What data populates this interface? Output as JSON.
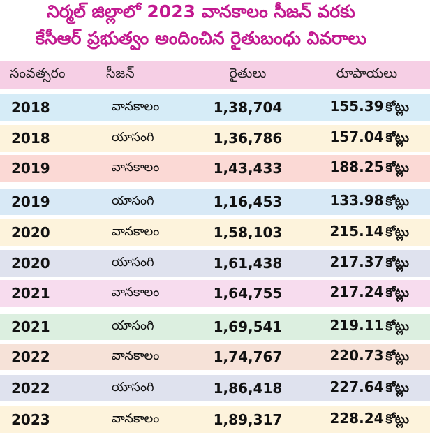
{
  "title": {
    "line1": "నిర్మల్ జిల్లాలో 2023 వానకాలం సీజన్ వరకు",
    "line2": "కేసీఆర్ ప్రభుత్వం అందించిన రైతుబంధు వివరాలు"
  },
  "table": {
    "headers": [
      "సంవత్సరం",
      "సీజన్",
      "రైతులు",
      "రూపాయలు"
    ],
    "unit": "కోట్లు",
    "rows": [
      {
        "year": "2018",
        "season": "వానకాలం",
        "farmers": "1,38,704",
        "amount": "155.39"
      },
      {
        "year": "2018",
        "season": "యాసంగి",
        "farmers": "1,36,786",
        "amount": "157.04"
      },
      {
        "year": "2019",
        "season": "వానకాలం",
        "farmers": "1,43,433",
        "amount": "188.25"
      },
      {
        "year": "2019",
        "season": "యాసంగి",
        "farmers": "1,16,453",
        "amount": "133.98"
      },
      {
        "year": "2020",
        "season": "వానకాలం",
        "farmers": "1,58,103",
        "amount": "215.14"
      },
      {
        "year": "2020",
        "season": "యాసంగి",
        "farmers": "1,61,438",
        "amount": "217.37"
      },
      {
        "year": "2021",
        "season": "వానకాలం",
        "farmers": "1,64,755",
        "amount": "217.24"
      },
      {
        "year": "2021",
        "season": "యాసంగి",
        "farmers": "1,69,541",
        "amount": "219.11"
      },
      {
        "year": "2022",
        "season": "వానకాలం",
        "farmers": "1,74,767",
        "amount": "220.73"
      },
      {
        "year": "2022",
        "season": "యాసంగి",
        "farmers": "1,86,418",
        "amount": "227.64"
      },
      {
        "year": "2023",
        "season": "వానకాలం",
        "farmers": "1,89,317",
        "amount": "228.24"
      }
    ]
  },
  "colors": {
    "title": "#c2198f",
    "header_bg": "#f6cfe5",
    "row_backgrounds": [
      "#d6ecf7",
      "#fdf3dc",
      "#fbd9d5",
      "#d8e9f6",
      "#fdf3dc",
      "#dfe2ee",
      "#f7dcee",
      "#dcefe0",
      "#f6e2d8",
      "#dfe2ee",
      "#fdf3dc"
    ]
  }
}
